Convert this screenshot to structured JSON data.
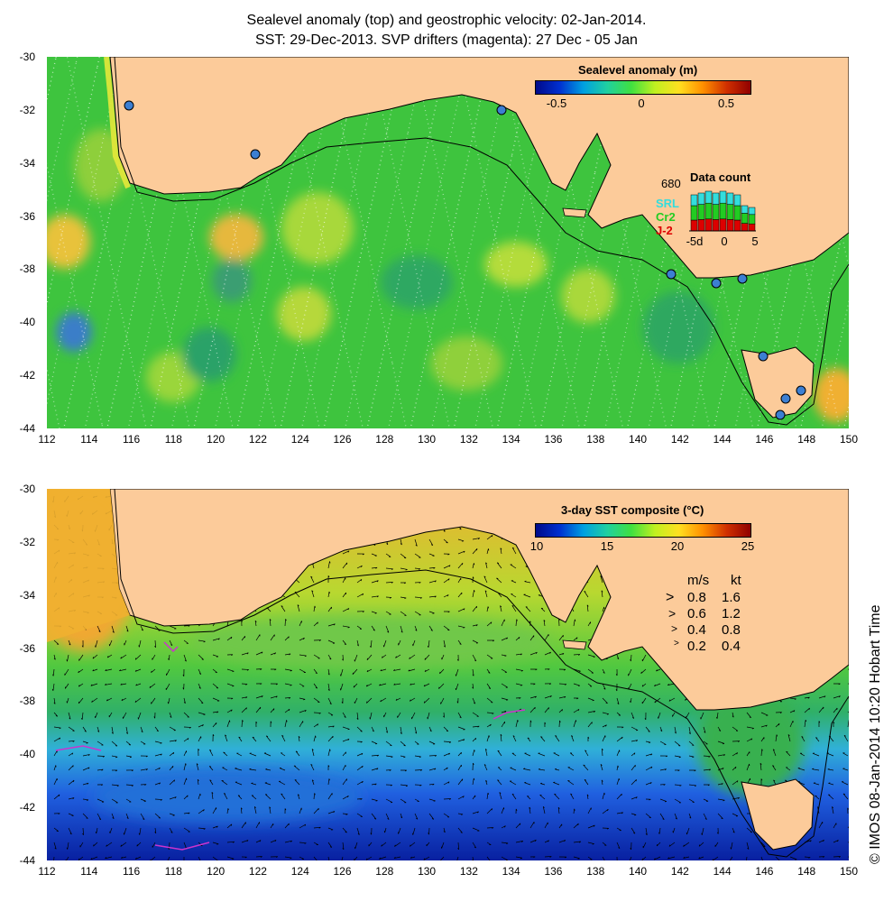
{
  "title_line1": "Sealevel anomaly (top) and geostrophic velocity: 02-Jan-2014.",
  "title_line2": "SST: 29-Dec-2013. SVP drifters (magenta): 27 Dec - 05 Jan",
  "axes": {
    "lat_labels": [
      "-30",
      "-32",
      "-34",
      "-36",
      "-38",
      "-40",
      "-42",
      "-44"
    ],
    "lon_labels": [
      "112",
      "114",
      "116",
      "118",
      "120",
      "122",
      "124",
      "126",
      "128",
      "130",
      "132",
      "134",
      "136",
      "138",
      "140",
      "142",
      "144",
      "146",
      "148",
      "150"
    ]
  },
  "top_panel": {
    "colorbar_label": "Sealevel anomaly (m)",
    "colorbar_ticks": [
      "-0.5",
      "0",
      "0.5"
    ],
    "data_count": {
      "title": "Data count",
      "max": "680",
      "sat1": "SRL",
      "sat2": "Cr2",
      "sat3": "J-2",
      "x_ticks": [
        "-5d",
        "0",
        "5"
      ],
      "colors": {
        "sat1": "#33dddd",
        "sat2": "#22cc22",
        "sat3": "#dd0000"
      }
    }
  },
  "bottom_panel": {
    "colorbar_label": "3-day SST composite (°C)",
    "colorbar_ticks": [
      "10",
      "15",
      "20",
      "25"
    ],
    "speed_legend": {
      "header_ms": "m/s",
      "header_kt": "kt",
      "rows": [
        {
          "ms": "0.8",
          "kt": "1.6"
        },
        {
          "ms": "0.6",
          "kt": "1.2"
        },
        {
          "ms": "0.4",
          "kt": "0.8"
        },
        {
          "ms": "0.2",
          "kt": "0.4"
        }
      ]
    }
  },
  "credit": "© IMOS 08-Jan-2014 10:20 Hobart Time",
  "colors": {
    "land": "#fccb9a",
    "ocean_top": "#33cc33",
    "coast": "#000000",
    "drifter": "#cc33cc"
  }
}
